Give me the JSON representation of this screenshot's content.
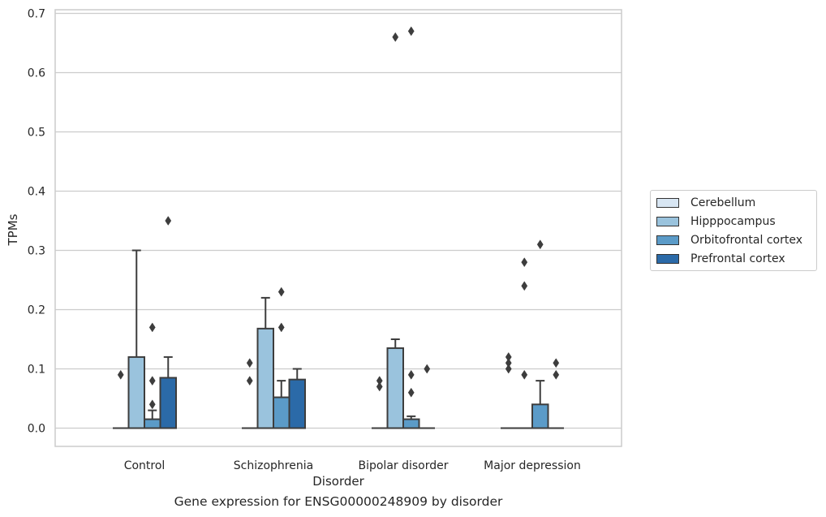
{
  "chart_data": {
    "type": "bar",
    "subtype": "boxplot",
    "caption": "Gene expression for ENSG00000248909 by disorder",
    "xlabel": "Disorder",
    "ylabel": "TPMs",
    "ylim": [
      -0.033,
      0.705
    ],
    "yticks": [
      "0.0",
      "0.1",
      "0.2",
      "0.3",
      "0.4",
      "0.5",
      "0.6",
      "0.7"
    ],
    "categories": [
      "Control",
      "Schizophrenia",
      "Bipolar disorder",
      "Major depression"
    ],
    "grid": "horizontal",
    "legend_position": "right",
    "series": [
      {
        "name": "Cerebellum",
        "color": "#d8e6f3",
        "boxes": [
          {
            "q1": 0,
            "median": 0,
            "q3": 0,
            "whisker_low": 0,
            "whisker_high": 0,
            "outliers": [
              0.09
            ]
          },
          {
            "q1": 0,
            "median": 0,
            "q3": 0,
            "whisker_low": 0,
            "whisker_high": 0,
            "outliers": [
              0.11,
              0.08
            ]
          },
          {
            "q1": 0,
            "median": 0,
            "q3": 0,
            "whisker_low": 0,
            "whisker_high": 0,
            "outliers": [
              0.08,
              0.07
            ]
          },
          {
            "q1": 0,
            "median": 0,
            "q3": 0,
            "whisker_low": 0,
            "whisker_high": 0,
            "outliers": [
              0.12,
              0.11,
              0.1
            ]
          }
        ]
      },
      {
        "name": "Hipppocampus",
        "color": "#9ac3dd",
        "boxes": [
          {
            "q1": 0,
            "median": 0,
            "q3": 0.12,
            "whisker_low": 0,
            "whisker_high": 0.3,
            "outliers": []
          },
          {
            "q1": 0,
            "median": 0,
            "q3": 0.168,
            "whisker_low": 0,
            "whisker_high": 0.22,
            "outliers": []
          },
          {
            "q1": 0,
            "median": 0,
            "q3": 0.135,
            "whisker_low": 0,
            "whisker_high": 0.15,
            "outliers": [
              0.66
            ]
          },
          {
            "q1": 0,
            "median": 0,
            "q3": 0,
            "whisker_low": 0,
            "whisker_high": 0,
            "outliers": [
              0.28,
              0.24,
              0.09
            ]
          }
        ]
      },
      {
        "name": "Orbitofrontal cortex",
        "color": "#5b9bc8",
        "boxes": [
          {
            "q1": 0,
            "median": 0,
            "q3": 0.015,
            "whisker_low": 0,
            "whisker_high": 0.03,
            "outliers": [
              0.17,
              0.08,
              0.04
            ]
          },
          {
            "q1": 0,
            "median": 0,
            "q3": 0.052,
            "whisker_low": 0,
            "whisker_high": 0.08,
            "outliers": [
              0.23,
              0.17
            ]
          },
          {
            "q1": 0,
            "median": 0,
            "q3": 0.015,
            "whisker_low": 0,
            "whisker_high": 0.02,
            "outliers": [
              0.67,
              0.09,
              0.06
            ]
          },
          {
            "q1": 0,
            "median": 0,
            "q3": 0.04,
            "whisker_low": 0,
            "whisker_high": 0.08,
            "outliers": [
              0.31
            ]
          }
        ]
      },
      {
        "name": "Prefrontal cortex",
        "color": "#2b6aa8",
        "boxes": [
          {
            "q1": 0,
            "median": 0,
            "q3": 0.085,
            "whisker_low": 0,
            "whisker_high": 0.12,
            "outliers": [
              0.35
            ]
          },
          {
            "q1": 0,
            "median": 0,
            "q3": 0.082,
            "whisker_low": 0,
            "whisker_high": 0.1,
            "outliers": []
          },
          {
            "q1": 0,
            "median": 0,
            "q3": 0,
            "whisker_low": 0,
            "whisker_high": 0,
            "outliers": [
              0.1
            ]
          },
          {
            "q1": 0,
            "median": 0,
            "q3": 0,
            "whisker_low": 0,
            "whisker_high": 0,
            "outliers": [
              0.11,
              0.09
            ]
          }
        ]
      }
    ]
  }
}
